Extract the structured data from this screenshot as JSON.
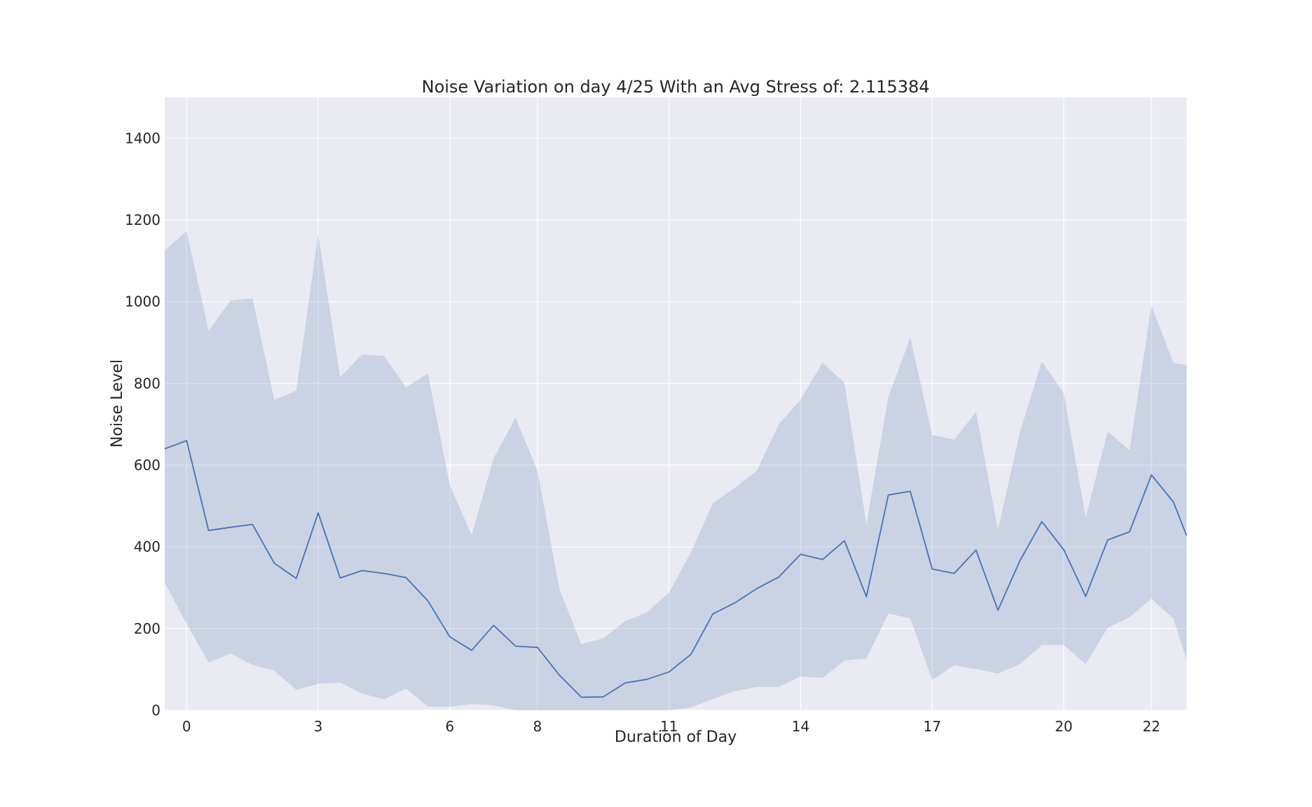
{
  "chart_data": {
    "type": "line",
    "title": "Noise Variation on day 4/25 With an Avg Stress of: 2.115384",
    "xlabel": "Duration of Day",
    "ylabel": "Noise Level",
    "xlim": [
      -0.5,
      22.8
    ],
    "ylim": [
      0,
      1500
    ],
    "xticks": [
      0,
      3,
      6,
      8,
      11,
      14,
      17,
      20,
      22
    ],
    "yticks": [
      0,
      200,
      400,
      600,
      800,
      1000,
      1200,
      1400
    ],
    "grid": true,
    "legend": "none",
    "colors": {
      "line": "#4c72b0",
      "band": "#4c72b0",
      "plot_bg": "#eaeaf2",
      "grid": "#ffffff"
    },
    "series": [
      {
        "x": [
          -0.5,
          0.0,
          0.5,
          1.0,
          1.5,
          2.0,
          2.5,
          3.0,
          3.5,
          4.0,
          4.5,
          5.0,
          5.5,
          6.0,
          6.5,
          7.0,
          7.5,
          8.0,
          8.5,
          9.0,
          9.5,
          10.0,
          10.5,
          11.0,
          11.5,
          12.0,
          12.5,
          13.0,
          13.5,
          14.0,
          14.5,
          15.0,
          15.5,
          16.0,
          16.5,
          17.0,
          17.5,
          18.0,
          18.5,
          19.0,
          19.5,
          20.0,
          20.5,
          21.0,
          21.5,
          22.0,
          22.5,
          22.8
        ],
        "y": [
          640,
          660,
          440,
          448,
          455,
          360,
          323,
          483,
          324,
          342,
          335,
          325,
          268,
          180,
          147,
          208,
          157,
          154,
          86,
          32,
          33,
          67,
          76,
          94,
          137,
          236,
          263,
          298,
          326,
          382,
          369,
          415,
          278,
          527,
          536,
          346,
          335,
          392,
          245,
          366,
          462,
          393,
          279,
          417,
          437,
          576,
          510,
          428
        ],
        "upper": [
          1125,
          1173,
          929,
          1003,
          1008,
          760,
          782,
          1166,
          815,
          871,
          867,
          791,
          824,
          551,
          429,
          617,
          716,
          586,
          297,
          162,
          176,
          218,
          240,
          288,
          387,
          507,
          545,
          586,
          700,
          760,
          851,
          801,
          455,
          767,
          912,
          674,
          662,
          730,
          441,
          681,
          853,
          776,
          472,
          682,
          637,
          990,
          850,
          845
        ],
        "lower": [
          313,
          211,
          117,
          139,
          111,
          97,
          50,
          65,
          68,
          41,
          27,
          53,
          9,
          9,
          15,
          12,
          0,
          0,
          0,
          0,
          0,
          0,
          0,
          0,
          7,
          28,
          47,
          57,
          57,
          83,
          79,
          122,
          127,
          237,
          225,
          74,
          110,
          101,
          90,
          113,
          160,
          160,
          113,
          202,
          228,
          273,
          225,
          124
        ]
      }
    ]
  }
}
